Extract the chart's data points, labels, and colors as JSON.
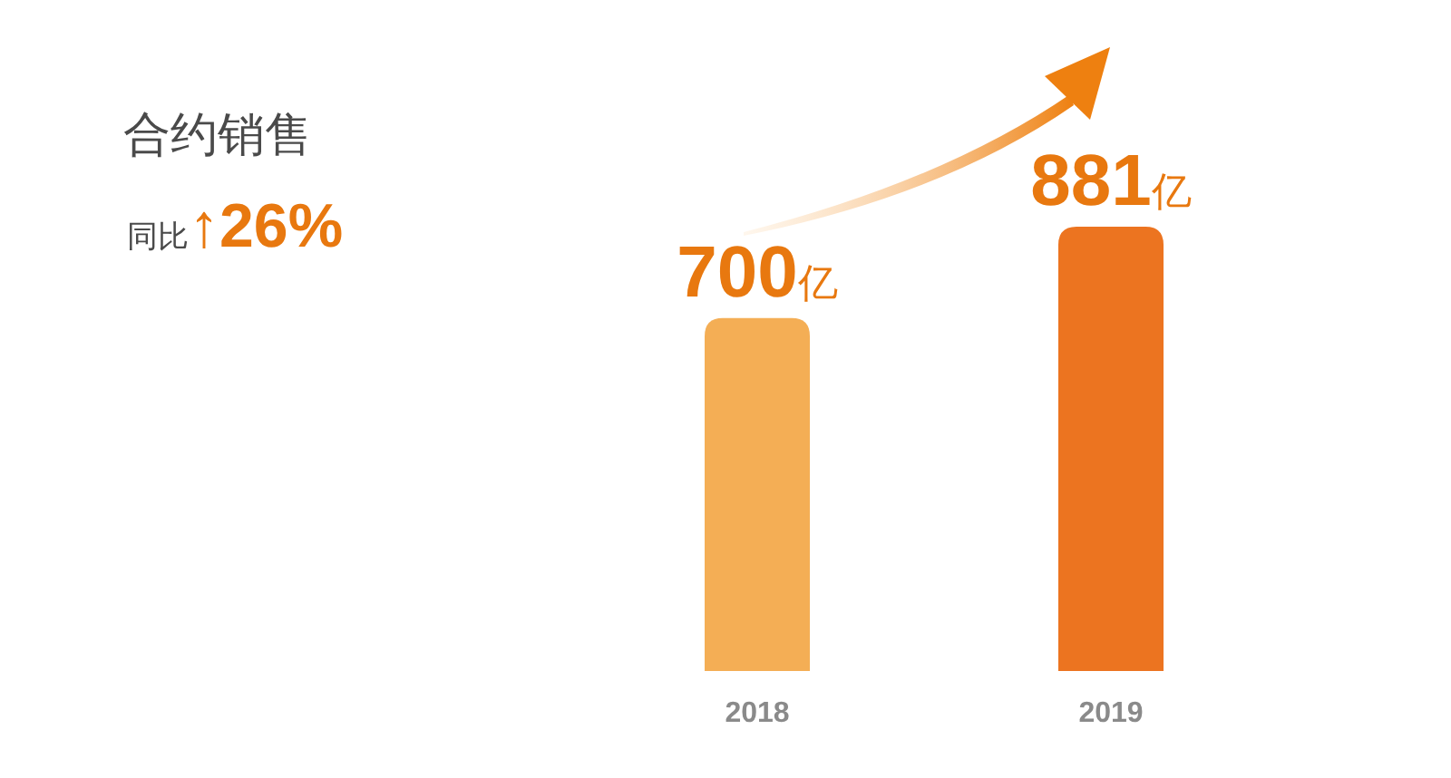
{
  "chart_data": {
    "type": "bar",
    "title": "合约销售",
    "subtitle": "同比↑26%",
    "categories": [
      "2018",
      "2019"
    ],
    "values": [
      700,
      881
    ],
    "colors": [
      "#f4ae55",
      "#ec7420"
    ],
    "value_labels": [
      "700亿",
      "881亿"
    ]
  }
}
